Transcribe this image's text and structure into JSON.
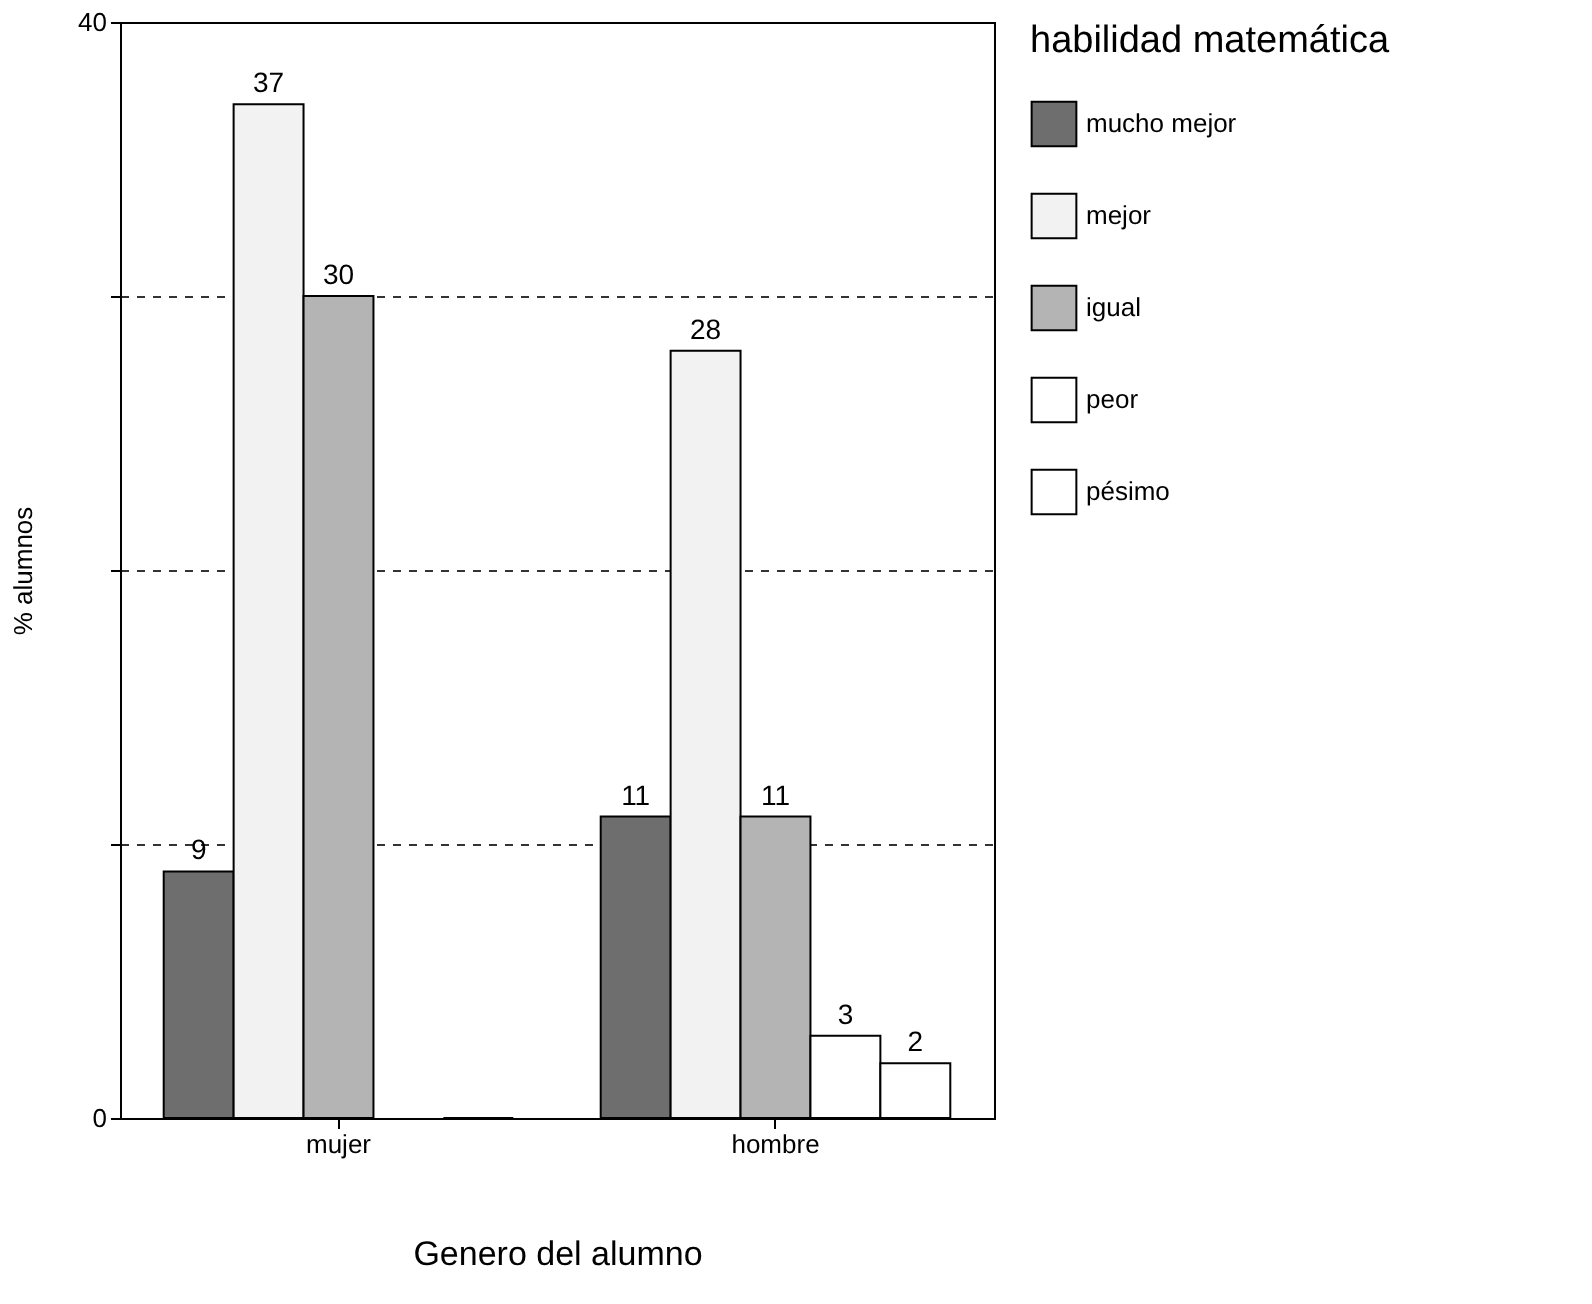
{
  "chart_data": {
    "type": "bar",
    "xlabel": "Genero del alumno",
    "ylabel": "% alumnos",
    "legend_title": "habilidad matemática",
    "categories": [
      "mujer",
      "hombre"
    ],
    "series": [
      {
        "name": "mucho mejor",
        "color": "#6e6e6e",
        "values": [
          9,
          11
        ],
        "value_labels": [
          "9",
          "11"
        ]
      },
      {
        "name": "mejor",
        "color": "#f2f2f2",
        "values": [
          37,
          28
        ],
        "value_labels": [
          "37",
          "28"
        ]
      },
      {
        "name": "igual",
        "color": "#b4b4b4",
        "values": [
          30,
          11
        ],
        "value_labels": [
          "30",
          "11"
        ]
      },
      {
        "name": "peor",
        "color": "#ffffff",
        "values": [
          null,
          3
        ],
        "value_labels": [
          null,
          "3"
        ]
      },
      {
        "name": "pésimo",
        "color": "#ffffff",
        "values": [
          0,
          2
        ],
        "value_labels": [
          null,
          "2"
        ]
      }
    ],
    "ylim": [
      0,
      40
    ],
    "yticks": [
      0,
      {
        "value": 10,
        "label": null
      },
      {
        "value": 20,
        "label": null
      },
      {
        "value": 30,
        "label": null
      },
      40
    ],
    "grid": "y",
    "legend": "right"
  }
}
